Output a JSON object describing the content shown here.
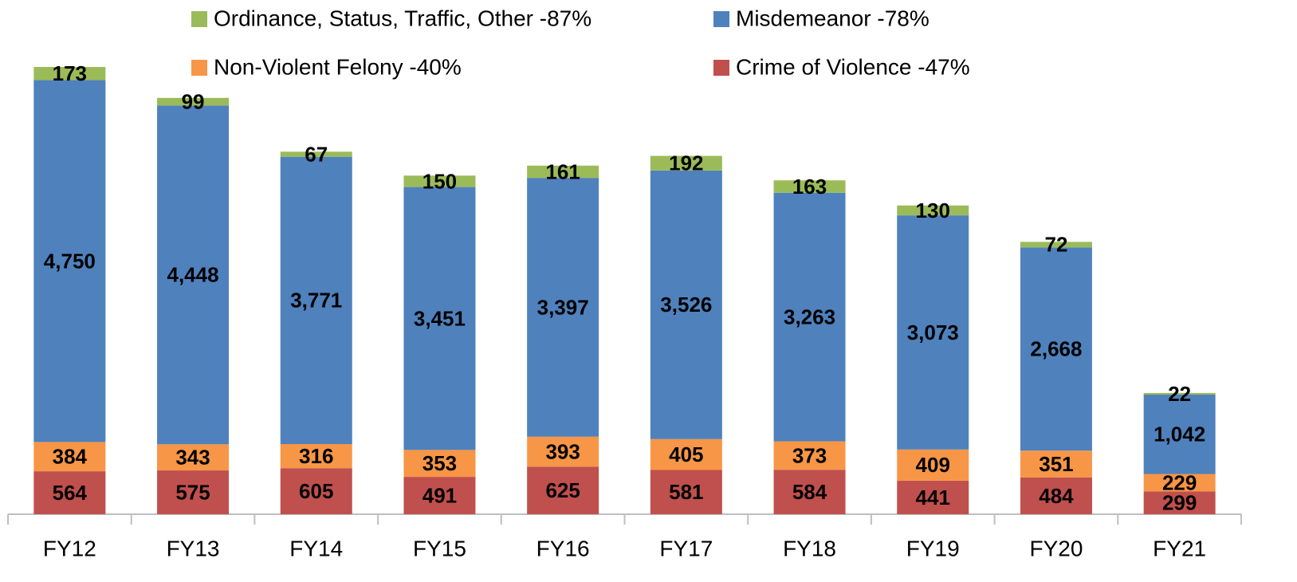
{
  "chart_data": {
    "type": "stacked_bar",
    "categories": [
      "FY12",
      "FY13",
      "FY14",
      "FY15",
      "FY16",
      "FY17",
      "FY18",
      "FY19",
      "FY20",
      "FY21"
    ],
    "series": [
      {
        "name": "Crime of Violence -47%",
        "color": "#c0504d",
        "values": [
          564,
          575,
          605,
          491,
          625,
          581,
          584,
          441,
          484,
          299
        ]
      },
      {
        "name": "Non-Violent Felony -40%",
        "color": "#f79646",
        "values": [
          384,
          343,
          316,
          353,
          393,
          405,
          373,
          409,
          351,
          229
        ]
      },
      {
        "name": "Misdemeanor -78%",
        "color": "#4f81bd",
        "values": [
          4750,
          4448,
          3771,
          3451,
          3397,
          3526,
          3263,
          3073,
          2668,
          1042
        ],
        "value_labels": [
          "4,750",
          "4,448",
          "3,771",
          "3,451",
          "3,397",
          "3,526",
          "3,263",
          "3,073",
          "2,668",
          "1,042"
        ]
      },
      {
        "name": "Ordinance, Status, Traffic, Other -87%",
        "color": "#9bbb59",
        "values": [
          173,
          99,
          67,
          150,
          161,
          192,
          163,
          130,
          72,
          22
        ]
      }
    ]
  }
}
